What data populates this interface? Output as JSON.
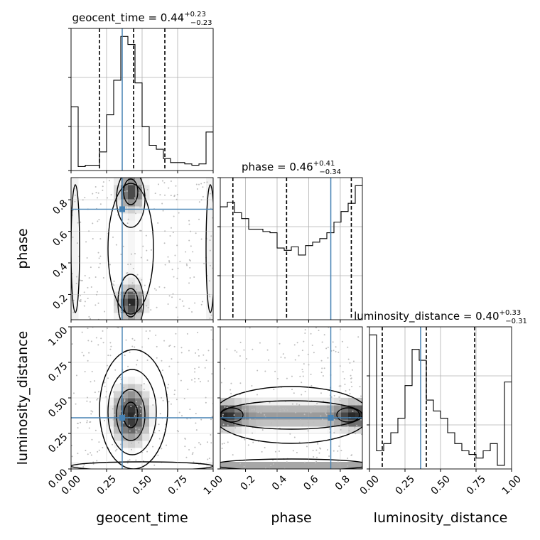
{
  "chart_data": {
    "type": "corner",
    "parameters": [
      "geocent_time",
      "phase",
      "luminosity_distance"
    ],
    "axis_labels": [
      "geocent_time",
      "phase",
      "luminosity_distance"
    ],
    "ranges": [
      [
        0.0,
        1.0
      ],
      [
        0.04,
        0.94
      ],
      [
        0.0,
        1.0
      ]
    ],
    "truth": [
      0.36,
      0.74,
      0.36
    ],
    "truth_color": "#4682b4",
    "line_color": "#000000",
    "grid": true,
    "ticks": {
      "geocent_time": [
        "0.00",
        "0.25",
        "0.50",
        "0.75",
        "1.00"
      ],
      "phase": [
        "0.2",
        "0.4",
        "0.6",
        "0.8"
      ],
      "luminosity_distance": [
        "0.00",
        "0.25",
        "0.50",
        "0.75",
        "1.00"
      ]
    },
    "tick_values": {
      "geocent_time": [
        0,
        0.25,
        0.5,
        0.75,
        1.0
      ],
      "phase": [
        0.2,
        0.4,
        0.6,
        0.8
      ],
      "luminosity_distance": [
        0,
        0.25,
        0.5,
        0.75,
        1.0
      ]
    },
    "diagonal": [
      {
        "parameter": "geocent_time",
        "title": {
          "prefix": "geocent_time = 0.44",
          "plus": "+0.23",
          "minus": "−0.23"
        },
        "quantiles": [
          0.2,
          0.44,
          0.66
        ],
        "bin_edges": [
          0,
          0.05,
          0.1,
          0.15,
          0.2,
          0.25,
          0.3,
          0.35,
          0.4,
          0.45,
          0.5,
          0.55,
          0.6,
          0.65,
          0.7,
          0.75,
          0.8,
          0.85,
          0.9,
          0.95,
          1.0
        ],
        "counts": [
          240,
          15,
          20,
          20,
          70,
          210,
          340,
          505,
          475,
          330,
          165,
          95,
          80,
          45,
          30,
          30,
          25,
          20,
          25,
          145
        ]
      },
      {
        "parameter": "phase",
        "title": {
          "prefix": "phase = 0.46",
          "plus": "+0.41",
          "minus": "−0.34"
        },
        "quantiles": [
          0.12,
          0.46,
          0.87
        ],
        "bin_edges": [
          0.04,
          0.085,
          0.13,
          0.175,
          0.22,
          0.265,
          0.31,
          0.355,
          0.4,
          0.445,
          0.49,
          0.535,
          0.58,
          0.625,
          0.67,
          0.715,
          0.76,
          0.805,
          0.85,
          0.895,
          0.94
        ],
        "counts": [
          480,
          500,
          455,
          430,
          385,
          385,
          375,
          370,
          305,
          295,
          310,
          275,
          315,
          330,
          345,
          370,
          415,
          460,
          495,
          570
        ]
      },
      {
        "parameter": "luminosity_distance",
        "title": {
          "prefix": "luminosity_distance = 0.40",
          "plus": "+0.33",
          "minus": "−0.31"
        },
        "quantiles": [
          0.09,
          0.4,
          0.74
        ],
        "bin_edges": [
          0,
          0.05,
          0.1,
          0.15,
          0.2,
          0.25,
          0.3,
          0.35,
          0.4,
          0.45,
          0.5,
          0.55,
          0.6,
          0.65,
          0.7,
          0.75,
          0.8,
          0.85,
          0.9,
          0.95,
          1.0
        ],
        "counts": [
          185,
          25,
          35,
          50,
          70,
          115,
          165,
          150,
          95,
          80,
          70,
          50,
          35,
          25,
          20,
          15,
          25,
          35,
          5,
          120
        ]
      }
    ],
    "pairs": [
      {
        "x": "geocent_time",
        "y": "phase"
      },
      {
        "x": "geocent_time",
        "y": "luminosity_distance"
      },
      {
        "x": "phase",
        "y": "luminosity_distance"
      }
    ]
  }
}
